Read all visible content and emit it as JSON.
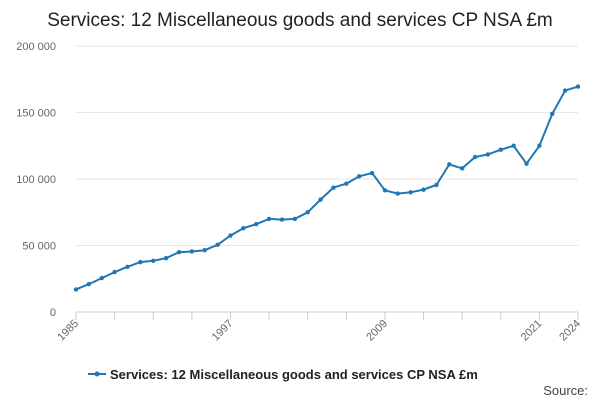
{
  "chart_data": {
    "type": "line",
    "title": "Services: 12 Miscellaneous goods and services CP NSA £m",
    "xlabel": "",
    "ylabel": "",
    "ylim": [
      0,
      200000
    ],
    "xlim": [
      1985,
      2024
    ],
    "y_ticks": [
      0,
      50000,
      100000,
      150000,
      200000
    ],
    "y_tick_labels": [
      "0",
      "50 000",
      "100 000",
      "150 000",
      "200 000"
    ],
    "x_ticks": [
      1985,
      1997,
      2009,
      2021,
      2024
    ],
    "x_tick_labels": [
      "1985",
      "1997",
      "2009",
      "2021",
      "2024"
    ],
    "grid": true,
    "legend_position": "bottom",
    "series": [
      {
        "name": "Services: 12 Miscellaneous goods and services CP NSA £m",
        "color": "#1f77b4",
        "x": [
          1985,
          1986,
          1987,
          1988,
          1989,
          1990,
          1991,
          1992,
          1993,
          1994,
          1995,
          1996,
          1997,
          1998,
          1999,
          2000,
          2001,
          2002,
          2003,
          2004,
          2005,
          2006,
          2007,
          2008,
          2009,
          2010,
          2011,
          2012,
          2013,
          2014,
          2015,
          2016,
          2017,
          2018,
          2019,
          2020,
          2021,
          2022,
          2023,
          2024
        ],
        "values": [
          17000,
          21000,
          25500,
          30000,
          34000,
          37500,
          38500,
          40500,
          45000,
          45500,
          46500,
          50500,
          57500,
          63000,
          66000,
          70000,
          69500,
          70000,
          75000,
          84500,
          93500,
          96500,
          102000,
          104500,
          91500,
          89000,
          90000,
          92000,
          95500,
          111000,
          108000,
          116500,
          118500,
          122000,
          125000,
          111500,
          125000,
          149000,
          166500,
          169500
        ]
      }
    ]
  },
  "legend": {
    "label": "Services: 12 Miscellaneous goods and services CP NSA £m"
  },
  "source": {
    "label": "Source:"
  }
}
